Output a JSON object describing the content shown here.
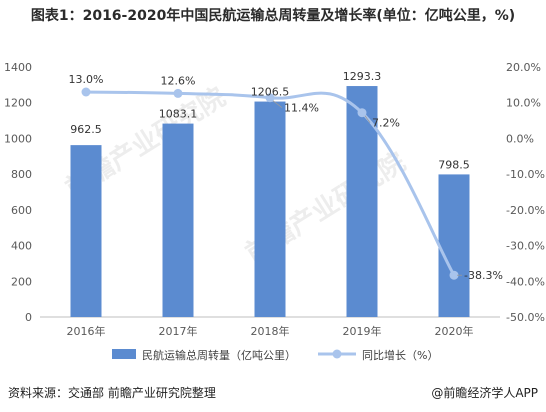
{
  "title": "图表1：2016-2020年中国民航运输总周转量及增长率(单位：亿吨公里，%)",
  "source_note": "资料来源：交通部 前瞻产业研究院整理",
  "brand": "@前瞻经济学人APP",
  "watermark": "前瞻产业研究院",
  "colors": {
    "bar": "#5b8bd0",
    "line": "#a9c4ec",
    "axis_text": "#595959",
    "grid": "#e4e4e4"
  },
  "chart_data": {
    "type": "bar",
    "categories": [
      "2016年",
      "2017年",
      "2018年",
      "2019年",
      "2020年"
    ],
    "series": [
      {
        "name": "民航运输总周转量（亿吨公里）",
        "type": "bar",
        "axis": "left",
        "values": [
          962.5,
          1083.1,
          1206.5,
          1293.3,
          798.5
        ],
        "labels": [
          "962.5",
          "1083.1",
          "1206.5",
          "1293.3",
          "798.5"
        ]
      },
      {
        "name": "同比增长（%）",
        "type": "line",
        "axis": "right",
        "values": [
          13.0,
          12.6,
          11.4,
          7.2,
          -38.3
        ],
        "labels": [
          "13.0%",
          "12.6%",
          "11.4%",
          "7.2%",
          "-38.3%"
        ]
      }
    ],
    "y_left": {
      "ylim": [
        0,
        1400
      ],
      "ticks": [
        0,
        200,
        400,
        600,
        800,
        1000,
        1200,
        1400
      ],
      "tick_labels": [
        "0",
        "200",
        "400",
        "600",
        "800",
        "1000",
        "1200",
        "1400"
      ]
    },
    "y_right": {
      "ylim": [
        -50,
        20
      ],
      "ticks": [
        -50,
        -40,
        -30,
        -20,
        -10,
        0,
        10,
        20
      ],
      "tick_labels": [
        "-50.0%",
        "-40.0%",
        "-30.0%",
        "-20.0%",
        "-10.0%",
        "0.0%",
        "10.0%",
        "20.0%"
      ]
    },
    "legend_position": "bottom",
    "grid": false
  }
}
